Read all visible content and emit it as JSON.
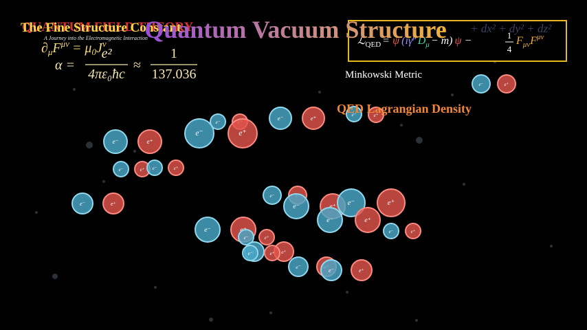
{
  "header": {
    "background_title": "QUANTUM FIELD THEORY",
    "title": "The Fine Structure Constant",
    "subtitle": "A Journey into the Electromagnetic Interaction",
    "main_title": "Quantum Vacuum Structure"
  },
  "maxwell": {
    "lhs": "∂",
    "lhs_sub": "μ",
    "field": "F",
    "field_sup": "μν",
    "eq": "= μ",
    "mu_sub": "0",
    "current": "J",
    "current_sup": "ν"
  },
  "fine_structure": {
    "alpha": "α =",
    "numerator": "e²",
    "denominator": "4πε₀ħc",
    "approx": "≈",
    "one": "1",
    "value": "137.036"
  },
  "lagrangian": {
    "lhs": "ℒ",
    "lhs_sub": "QED",
    "eq": "=",
    "psibar": "ψ̄",
    "open": "(iγ",
    "gamma_sup": "μ",
    "d": "D",
    "d_sub": "μ",
    "mass": "− m)",
    "psi": "ψ",
    "minus": "−",
    "quarter_num": "1",
    "quarter_den": "4",
    "f1": "F",
    "f1_sub": "μν",
    "f2": "F",
    "f2_sup": "μν"
  },
  "metric_faded": "+ dx² + dy² + dz²",
  "labels": {
    "minkowski": "Minkowski Metric",
    "qed_density": "QED Lagrangian Density"
  },
  "particles": [
    "e⁻",
    "e⁺",
    "e⁻",
    "e⁺",
    "e⁻",
    "e⁺",
    "e⁻",
    "e⁺",
    "e⁻",
    "e⁺",
    "e⁻",
    "e⁺",
    "e⁻",
    "e⁺",
    "e⁻",
    "e⁺",
    "e⁻",
    "e⁺",
    "e⁻",
    "e⁺",
    "e⁻",
    "e⁺",
    "e⁻",
    "e⁺",
    "e⁻",
    "e⁺",
    "e⁻",
    "e⁺",
    "e⁻",
    "e⁺",
    "e⁻",
    "e⁺",
    "e⁻",
    "e⁺",
    "e⁻",
    "e⁺",
    "e⁻",
    "e⁺",
    "e⁻",
    "e⁺"
  ]
}
